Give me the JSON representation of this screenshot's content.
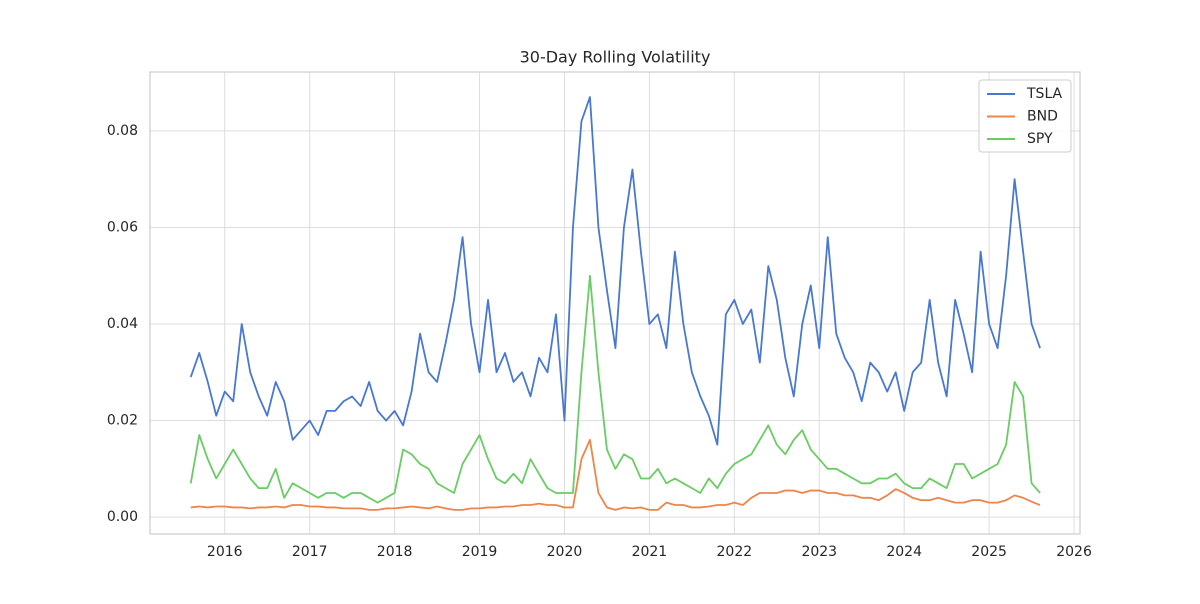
{
  "chart_data": {
    "type": "line",
    "title": "30-Day Rolling Volatility",
    "x": [
      2015.6,
      2015.7,
      2015.8,
      2015.9,
      2016.0,
      2016.1,
      2016.2,
      2016.3,
      2016.4,
      2016.5,
      2016.6,
      2016.7,
      2016.8,
      2016.9,
      2017.0,
      2017.1,
      2017.2,
      2017.3,
      2017.4,
      2017.5,
      2017.6,
      2017.7,
      2017.8,
      2017.9,
      2018.0,
      2018.1,
      2018.2,
      2018.3,
      2018.4,
      2018.5,
      2018.6,
      2018.7,
      2018.8,
      2018.9,
      2019.0,
      2019.1,
      2019.2,
      2019.3,
      2019.4,
      2019.5,
      2019.6,
      2019.7,
      2019.8,
      2019.9,
      2020.0,
      2020.1,
      2020.2,
      2020.3,
      2020.4,
      2020.5,
      2020.6,
      2020.7,
      2020.8,
      2020.9,
      2021.0,
      2021.1,
      2021.2,
      2021.3,
      2021.4,
      2021.5,
      2021.6,
      2021.7,
      2021.8,
      2021.9,
      2022.0,
      2022.1,
      2022.2,
      2022.3,
      2022.4,
      2022.5,
      2022.6,
      2022.7,
      2022.8,
      2022.9,
      2023.0,
      2023.1,
      2023.2,
      2023.3,
      2023.4,
      2023.5,
      2023.6,
      2023.7,
      2023.8,
      2023.9,
      2024.0,
      2024.1,
      2024.2,
      2024.3,
      2024.4,
      2024.5,
      2024.6,
      2024.7,
      2024.8,
      2024.9,
      2025.0,
      2025.1,
      2025.2,
      2025.3,
      2025.4,
      2025.5,
      2025.6
    ],
    "series": [
      {
        "name": "TSLA",
        "color": "#4878d0",
        "values": [
          0.029,
          0.034,
          0.028,
          0.021,
          0.026,
          0.024,
          0.04,
          0.03,
          0.025,
          0.021,
          0.028,
          0.024,
          0.016,
          0.018,
          0.02,
          0.017,
          0.022,
          0.022,
          0.024,
          0.025,
          0.023,
          0.028,
          0.022,
          0.02,
          0.022,
          0.019,
          0.026,
          0.038,
          0.03,
          0.028,
          0.036,
          0.045,
          0.058,
          0.04,
          0.03,
          0.045,
          0.03,
          0.034,
          0.028,
          0.03,
          0.025,
          0.033,
          0.03,
          0.042,
          0.02,
          0.06,
          0.082,
          0.087,
          0.06,
          0.047,
          0.035,
          0.06,
          0.072,
          0.055,
          0.04,
          0.042,
          0.035,
          0.055,
          0.04,
          0.03,
          0.025,
          0.021,
          0.015,
          0.042,
          0.045,
          0.04,
          0.043,
          0.032,
          0.052,
          0.045,
          0.033,
          0.025,
          0.04,
          0.048,
          0.035,
          0.058,
          0.038,
          0.033,
          0.03,
          0.024,
          0.032,
          0.03,
          0.026,
          0.03,
          0.022,
          0.03,
          0.032,
          0.045,
          0.032,
          0.025,
          0.045,
          0.038,
          0.03,
          0.055,
          0.04,
          0.035,
          0.05,
          0.07,
          0.055,
          0.04,
          0.035
        ]
      },
      {
        "name": "BND",
        "color": "#ee854a",
        "values": [
          0.002,
          0.0022,
          0.002,
          0.0022,
          0.0022,
          0.002,
          0.002,
          0.0018,
          0.002,
          0.002,
          0.0022,
          0.002,
          0.0025,
          0.0025,
          0.0022,
          0.0022,
          0.002,
          0.002,
          0.0018,
          0.0018,
          0.0018,
          0.0015,
          0.0015,
          0.0018,
          0.0018,
          0.002,
          0.0022,
          0.002,
          0.0018,
          0.0022,
          0.0018,
          0.0015,
          0.0015,
          0.0018,
          0.0018,
          0.002,
          0.002,
          0.0022,
          0.0022,
          0.0025,
          0.0025,
          0.0028,
          0.0025,
          0.0025,
          0.002,
          0.002,
          0.012,
          0.016,
          0.005,
          0.002,
          0.0015,
          0.002,
          0.0018,
          0.002,
          0.0015,
          0.0015,
          0.003,
          0.0025,
          0.0025,
          0.002,
          0.002,
          0.0022,
          0.0025,
          0.0025,
          0.003,
          0.0025,
          0.004,
          0.005,
          0.005,
          0.005,
          0.0055,
          0.0055,
          0.005,
          0.0055,
          0.0055,
          0.005,
          0.005,
          0.0045,
          0.0045,
          0.004,
          0.004,
          0.0035,
          0.0045,
          0.0058,
          0.005,
          0.004,
          0.0035,
          0.0035,
          0.004,
          0.0035,
          0.003,
          0.003,
          0.0035,
          0.0035,
          0.003,
          0.003,
          0.0035,
          0.0045,
          0.004,
          0.0032,
          0.0025
        ]
      },
      {
        "name": "SPY",
        "color": "#6acc64",
        "values": [
          0.007,
          0.017,
          0.012,
          0.008,
          0.011,
          0.014,
          0.011,
          0.008,
          0.006,
          0.006,
          0.01,
          0.004,
          0.007,
          0.006,
          0.005,
          0.004,
          0.005,
          0.005,
          0.004,
          0.005,
          0.005,
          0.004,
          0.003,
          0.004,
          0.005,
          0.014,
          0.013,
          0.011,
          0.01,
          0.007,
          0.006,
          0.005,
          0.011,
          0.014,
          0.017,
          0.012,
          0.008,
          0.007,
          0.009,
          0.007,
          0.012,
          0.009,
          0.006,
          0.005,
          0.005,
          0.005,
          0.03,
          0.05,
          0.03,
          0.014,
          0.01,
          0.013,
          0.012,
          0.008,
          0.008,
          0.01,
          0.007,
          0.008,
          0.007,
          0.006,
          0.005,
          0.008,
          0.006,
          0.009,
          0.011,
          0.012,
          0.013,
          0.016,
          0.019,
          0.015,
          0.013,
          0.016,
          0.018,
          0.014,
          0.012,
          0.01,
          0.01,
          0.009,
          0.008,
          0.007,
          0.007,
          0.008,
          0.008,
          0.009,
          0.007,
          0.006,
          0.006,
          0.008,
          0.007,
          0.006,
          0.011,
          0.011,
          0.008,
          0.009,
          0.01,
          0.011,
          0.015,
          0.028,
          0.025,
          0.007,
          0.005
        ]
      }
    ],
    "xlim": [
      2015.12,
      2026.07
    ],
    "xticks": [
      2016,
      2017,
      2018,
      2019,
      2020,
      2021,
      2022,
      2023,
      2024,
      2025,
      2026
    ],
    "ylim": [
      -0.0035,
      0.0922
    ],
    "yticks": [
      {
        "value": 0,
        "label": "0.00"
      },
      {
        "value": 0.02,
        "label": "0.02"
      },
      {
        "value": 0.04,
        "label": "0.04"
      },
      {
        "value": 0.06,
        "label": "0.06"
      },
      {
        "value": 0.08,
        "label": "0.08"
      }
    ],
    "grid": true,
    "legend": "upper right"
  }
}
